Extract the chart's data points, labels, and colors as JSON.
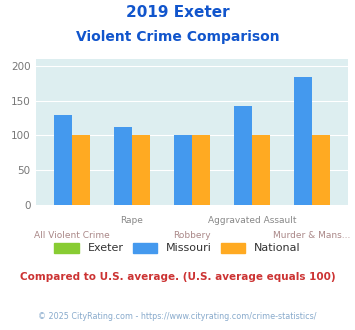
{
  "title_line1": "2019 Exeter",
  "title_line2": "Violent Crime Comparison",
  "exeter_color": "#88cc33",
  "missouri_color": "#4499ee",
  "national_color": "#ffaa22",
  "bg_color": "#ddeef0",
  "title_color": "#1155cc",
  "footer_text": "Compared to U.S. average. (U.S. average equals 100)",
  "footer_color": "#cc3333",
  "copyright_text": "© 2025 CityRating.com - https://www.cityrating.com/crime-statistics/",
  "copyright_color": "#88aacc",
  "ylim": [
    0,
    210
  ],
  "yticks": [
    0,
    50,
    100,
    150,
    200
  ],
  "n_groups": 5,
  "missouri_vals": [
    130,
    112,
    100,
    143,
    185
  ],
  "national_vals": [
    101,
    101,
    101,
    101,
    101
  ],
  "exeter_vals": [
    0,
    0,
    0,
    0,
    0
  ],
  "labels_top": [
    "",
    "Rape",
    "",
    "Aggravated Assault",
    ""
  ],
  "labels_bot": [
    "All Violent Crime",
    "",
    "Robbery",
    "",
    "Murder & Mans..."
  ]
}
